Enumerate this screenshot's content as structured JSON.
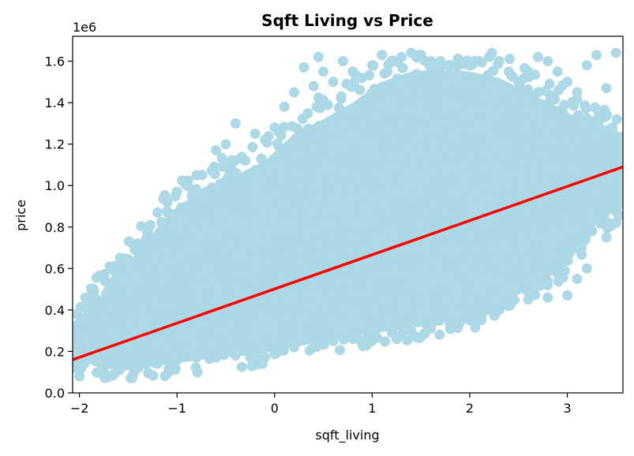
{
  "chart_data": {
    "type": "scatter",
    "title": "Sqft Living vs Price",
    "xlabel": "sqft_living",
    "ylabel": "price",
    "y_offset_label": "1e6",
    "xlim": [
      -2.07,
      3.57
    ],
    "ylim": [
      0,
      1.72
    ],
    "x_ticks": [
      -2,
      -1,
      0,
      1,
      2,
      3
    ],
    "x_tick_labels": [
      "−2",
      "−1",
      "0",
      "1",
      "2",
      "3"
    ],
    "y_ticks": [
      0.0,
      0.2,
      0.4,
      0.6,
      0.8,
      1.0,
      1.2,
      1.4,
      1.6
    ],
    "y_tick_labels": [
      "0.0",
      "0.2",
      "0.4",
      "0.6",
      "0.8",
      "1.0",
      "1.2",
      "1.4",
      "1.6"
    ],
    "grid": false,
    "legend": "none",
    "colors": {
      "points": "#add8e6",
      "regression": "#ff0000"
    },
    "regression_line": {
      "x": [
        -2.07,
        3.57
      ],
      "y": [
        0.16,
        1.09
      ]
    },
    "series": [
      {
        "values": [
          [
            -2.0,
            0.08
          ],
          [
            -1.9,
            0.42
          ],
          [
            -1.8,
            0.25
          ],
          [
            -1.7,
            0.5
          ],
          [
            -1.6,
            0.57
          ],
          [
            -1.5,
            0.35
          ],
          [
            -1.4,
            0.68
          ],
          [
            -1.3,
            0.78
          ],
          [
            -1.2,
            0.87
          ],
          [
            -1.1,
            0.92
          ],
          [
            -1.0,
            0.97
          ],
          [
            -0.9,
            0.9
          ],
          [
            -0.8,
            1.05
          ],
          [
            -0.7,
            0.97
          ],
          [
            -0.6,
            1.17
          ],
          [
            -0.5,
            1.2
          ],
          [
            -0.4,
            1.3
          ],
          [
            -0.3,
            1.12
          ],
          [
            -0.2,
            1.25
          ],
          [
            -0.1,
            1.22
          ],
          [
            0.0,
            1.28
          ],
          [
            0.1,
            1.38
          ],
          [
            0.2,
            1.45
          ],
          [
            0.3,
            1.57
          ],
          [
            0.4,
            1.48
          ],
          [
            0.45,
            1.62
          ],
          [
            0.5,
            1.55
          ],
          [
            0.6,
            1.5
          ],
          [
            0.7,
            1.6
          ],
          [
            0.8,
            1.55
          ],
          [
            0.9,
            1.52
          ],
          [
            1.0,
            1.58
          ],
          [
            1.1,
            1.63
          ],
          [
            1.2,
            1.6
          ],
          [
            1.3,
            1.62
          ],
          [
            1.4,
            1.64
          ],
          [
            1.5,
            1.63
          ],
          [
            1.6,
            1.6
          ],
          [
            1.7,
            1.6
          ],
          [
            1.8,
            1.58
          ],
          [
            1.9,
            1.6
          ],
          [
            2.0,
            1.58
          ],
          [
            2.1,
            1.6
          ],
          [
            2.2,
            1.62
          ],
          [
            2.3,
            1.6
          ],
          [
            2.4,
            1.55
          ],
          [
            2.5,
            1.5
          ],
          [
            2.6,
            1.55
          ],
          [
            2.7,
            1.62
          ],
          [
            2.8,
            1.6
          ],
          [
            2.9,
            1.55
          ],
          [
            3.0,
            1.5
          ],
          [
            3.1,
            1.45
          ],
          [
            3.2,
            1.58
          ],
          [
            3.3,
            1.63
          ],
          [
            3.4,
            1.47
          ],
          [
            3.5,
            1.64
          ],
          [
            -1.8,
            0.1
          ],
          [
            -1.6,
            0.12
          ],
          [
            -1.4,
            0.12
          ],
          [
            -1.2,
            0.15
          ],
          [
            -1.0,
            0.16
          ],
          [
            -0.8,
            0.17
          ],
          [
            -0.6,
            0.17
          ],
          [
            -0.4,
            0.18
          ],
          [
            -0.2,
            0.19
          ],
          [
            0.0,
            0.2
          ],
          [
            0.2,
            0.22
          ],
          [
            0.4,
            0.24
          ],
          [
            0.6,
            0.25
          ],
          [
            0.8,
            0.26
          ],
          [
            1.0,
            0.27
          ],
          [
            1.2,
            0.29
          ],
          [
            1.4,
            0.3
          ],
          [
            1.6,
            0.31
          ],
          [
            1.8,
            0.33
          ],
          [
            2.0,
            0.35
          ],
          [
            2.2,
            0.4
          ],
          [
            2.4,
            0.42
          ],
          [
            2.6,
            0.45
          ],
          [
            2.8,
            0.46
          ],
          [
            3.0,
            0.47
          ],
          [
            3.2,
            0.6
          ],
          [
            3.4,
            0.75
          ],
          [
            3.5,
            0.82
          ],
          [
            2.7,
            0.72
          ],
          [
            2.9,
            0.7
          ],
          [
            3.0,
            0.65
          ],
          [
            3.1,
            0.55
          ],
          [
            3.2,
            0.78
          ],
          [
            3.3,
            0.98
          ],
          [
            3.4,
            1.02
          ],
          [
            3.5,
            0.95
          ],
          [
            3.45,
            1.15
          ],
          [
            3.3,
            1.25
          ],
          [
            3.2,
            1.3
          ],
          [
            2.8,
            0.52
          ],
          [
            2.6,
            0.5
          ],
          [
            2.5,
            0.58
          ],
          [
            2.3,
            0.4
          ],
          [
            2.1,
            0.36
          ],
          [
            1.9,
            0.34
          ]
        ]
      }
    ]
  }
}
